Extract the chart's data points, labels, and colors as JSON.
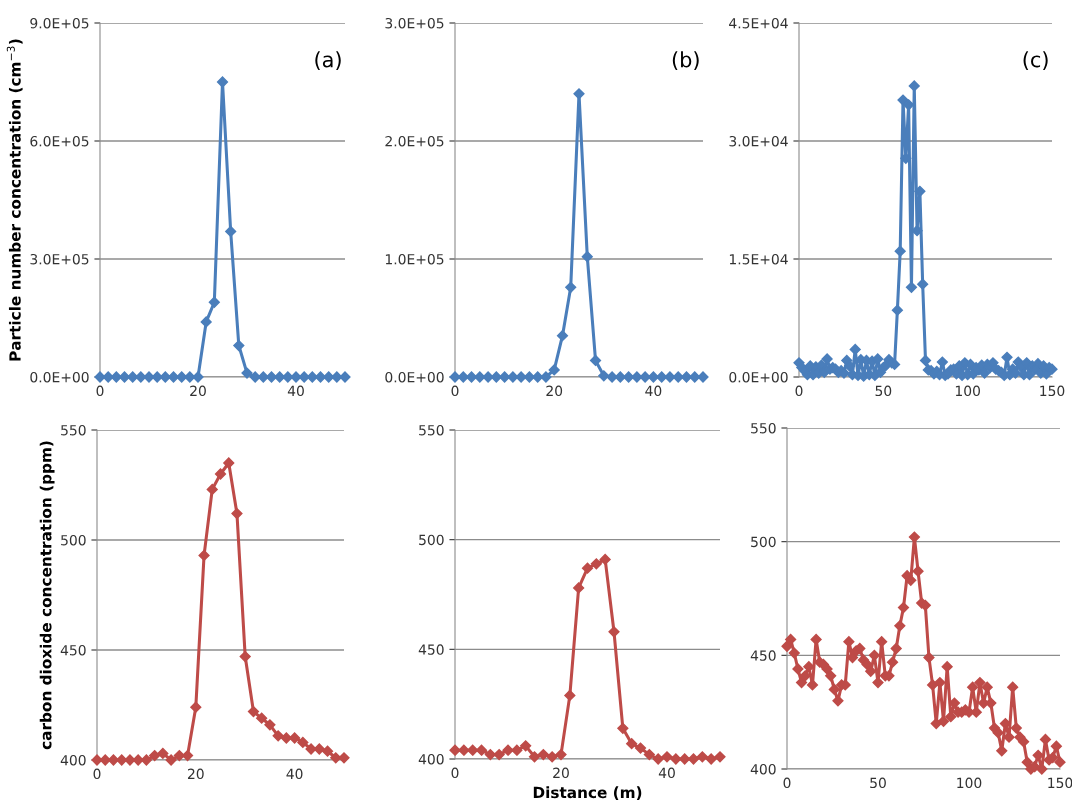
{
  "chart_data": [
    {
      "type": "line",
      "annotations": [
        "(a)"
      ],
      "ylabel": "Particle number concentration (cm$^{−3}$)",
      "marker": "diamond",
      "line_style": "solid",
      "grid": "y",
      "x": [
        0,
        1.67,
        3.33,
        5,
        6.67,
        8.33,
        10,
        11.67,
        13.33,
        15,
        16.67,
        18.33,
        20,
        21.67,
        23.33,
        25,
        26.67,
        28.33,
        30,
        31.67,
        33.33,
        35,
        36.67,
        38.33,
        40,
        41.67,
        43.33,
        45,
        46.67,
        48.33,
        50
      ],
      "series": [
        {
          "color": "#4a7ebb",
          "values": [
            0,
            0,
            0,
            0,
            0,
            0,
            0,
            0,
            0,
            0,
            0,
            0,
            0,
            140000,
            190000,
            750000,
            370000,
            80000,
            10000,
            0,
            0,
            0,
            0,
            0,
            0,
            0,
            0,
            0,
            0,
            0,
            0
          ]
        }
      ],
      "xlim": [
        0,
        50
      ],
      "xticks": [
        0,
        20,
        40
      ],
      "ylim": [
        0,
        900000
      ],
      "yticks": [
        {
          "value": 0,
          "label": "0.0E+00"
        },
        {
          "value": 300000,
          "label": "3.0E+05"
        },
        {
          "value": 600000,
          "label": "6.0E+05"
        },
        {
          "value": 900000,
          "label": "9.0E+05"
        }
      ]
    },
    {
      "type": "line",
      "annotations": [
        "(b)"
      ],
      "marker": "diamond",
      "line_style": "solid",
      "grid": "y",
      "x": [
        0,
        1.67,
        3.33,
        5,
        6.67,
        8.33,
        10,
        11.67,
        13.33,
        15,
        16.67,
        18.33,
        20,
        21.67,
        23.33,
        25,
        26.67,
        28.33,
        30,
        31.67,
        33.33,
        35,
        36.67,
        38.33,
        40,
        41.67,
        43.33,
        45,
        46.67,
        48.33,
        50
      ],
      "series": [
        {
          "color": "#4a7ebb",
          "values": [
            0,
            0,
            0,
            0,
            0,
            0,
            0,
            0,
            0,
            0,
            0,
            0,
            6000,
            35000,
            76000,
            240000,
            102000,
            14000,
            1000,
            0,
            0,
            0,
            0,
            0,
            0,
            0,
            0,
            0,
            0,
            0,
            0
          ]
        }
      ],
      "xlim": [
        0,
        50
      ],
      "xticks": [
        0,
        20,
        40
      ],
      "ylim": [
        0,
        300000
      ],
      "yticks": [
        {
          "value": 0,
          "label": "0.0E+00"
        },
        {
          "value": 100000,
          "label": "1.0E+05"
        },
        {
          "value": 200000,
          "label": "2.0E+05"
        },
        {
          "value": 300000,
          "label": "3.0E+05"
        }
      ]
    },
    {
      "type": "line",
      "annotations": [
        "(c)"
      ],
      "marker": "diamond",
      "line_style": "solid",
      "grid": "y",
      "x": [
        0,
        1.67,
        3.33,
        5,
        6.67,
        8.33,
        10,
        11.67,
        13.33,
        15,
        16.67,
        18.33,
        20,
        21.67,
        23.33,
        25,
        26.67,
        28.33,
        30,
        31.67,
        33.33,
        35,
        36.67,
        38.33,
        40,
        41.67,
        43.33,
        45,
        46.67,
        48.33,
        50,
        51.67,
        53.33,
        55,
        56.67,
        58.33,
        60,
        61.67,
        63.33,
        65,
        66.67,
        68.33,
        70,
        71.67,
        73.33,
        75,
        76.67,
        78.33,
        80,
        81.67,
        83.33,
        85,
        86.67,
        88.33,
        90,
        91.67,
        93.33,
        95,
        96.67,
        98.33,
        100,
        101.67,
        103.33,
        105,
        106.67,
        108.33,
        110,
        111.67,
        113.33,
        115,
        116.67,
        118.33,
        120,
        121.67,
        123.33,
        125,
        126.67,
        128.33,
        130,
        131.67,
        133.33,
        135,
        136.67,
        138.33,
        140,
        141.67,
        143.33,
        145,
        146.67,
        148.33,
        150
      ],
      "series": [
        {
          "color": "#4a7ebb",
          "values": [
            1800,
            1200,
            800,
            300,
            1400,
            300,
            1300,
            500,
            1500,
            600,
            2300,
            1000,
            1200,
            1000,
            600,
            800,
            500,
            2100,
            1400,
            300,
            3500,
            200,
            2200,
            100,
            2100,
            300,
            2000,
            200,
            2300,
            600,
            1200,
            1500,
            2200,
            1800,
            1600,
            8500,
            16000,
            35200,
            27800,
            34600,
            11400,
            37000,
            18600,
            23600,
            11800,
            2100,
            900,
            800,
            400,
            700,
            300,
            1900,
            200,
            400,
            900,
            1000,
            400,
            1400,
            200,
            1800,
            300,
            1600,
            400,
            1200,
            900,
            1500,
            500,
            1600,
            1200,
            1800,
            1000,
            800,
            600,
            200,
            2500,
            300,
            1000,
            500,
            1900,
            1300,
            300,
            1800,
            300,
            1400,
            1000,
            1700,
            500,
            1400,
            400,
            1200,
            1000
          ]
        }
      ],
      "xlim": [
        0,
        150
      ],
      "xticks": [
        0,
        50,
        100,
        150
      ],
      "ylim": [
        0,
        45000
      ],
      "yticks": [
        {
          "value": 0,
          "label": "0.0E+00"
        },
        {
          "value": 15000,
          "label": "1.5E+04"
        },
        {
          "value": 30000,
          "label": "3.0E+04"
        },
        {
          "value": 45000,
          "label": "4.5E+04"
        }
      ]
    },
    {
      "type": "line",
      "ylabel": "carbon dioxide concentration (ppm)",
      "marker": "diamond",
      "line_style": "solid",
      "grid": "y",
      "x": [
        0,
        1.67,
        3.33,
        5,
        6.67,
        8.33,
        10,
        11.67,
        13.33,
        15,
        16.67,
        18.33,
        20,
        21.67,
        23.33,
        25,
        26.67,
        28.33,
        30,
        31.67,
        33.33,
        35,
        36.67,
        38.33,
        40,
        41.67,
        43.33,
        45,
        46.67,
        48.33,
        50
      ],
      "series": [
        {
          "color": "#be4b48",
          "values": [
            400,
            400,
            400,
            400,
            400,
            400,
            400,
            402,
            403,
            400,
            402,
            402,
            424,
            493,
            523,
            530,
            535,
            512,
            447,
            422,
            419,
            416,
            411,
            410,
            410,
            408,
            405,
            405,
            404,
            401,
            401
          ]
        }
      ],
      "xlim": [
        0,
        50
      ],
      "xticks": [
        0,
        20,
        40
      ],
      "ylim": [
        400,
        550
      ],
      "yticks": [
        400,
        450,
        500,
        550
      ]
    },
    {
      "type": "line",
      "xlabel": "Distance (m)",
      "marker": "diamond",
      "line_style": "solid",
      "grid": "y",
      "x": [
        0,
        1.67,
        3.33,
        5,
        6.67,
        8.33,
        10,
        11.67,
        13.33,
        15,
        16.67,
        18.33,
        20,
        21.67,
        23.33,
        25,
        26.67,
        28.33,
        30,
        31.67,
        33.33,
        35,
        36.67,
        38.33,
        40,
        41.67,
        43.33,
        45,
        46.67,
        48.33,
        50
      ],
      "series": [
        {
          "color": "#be4b48",
          "values": [
            404,
            404,
            404,
            404,
            402,
            402,
            404,
            404,
            406,
            401,
            402,
            401,
            402,
            429,
            478,
            487,
            489,
            491,
            458,
            414,
            407,
            405,
            402,
            400,
            401,
            400,
            400,
            400,
            401,
            400,
            401
          ]
        }
      ],
      "xlim": [
        0,
        50
      ],
      "xticks": [
        0,
        20,
        40
      ],
      "ylim": [
        400,
        550
      ],
      "yticks": [
        400,
        450,
        500,
        550
      ]
    },
    {
      "type": "line",
      "marker": "diamond",
      "line_style": "solid",
      "grid": "y",
      "x": [
        0,
        2,
        4,
        6,
        8,
        10,
        12,
        14,
        16,
        18,
        20,
        22,
        24,
        26,
        28,
        30,
        32,
        34,
        36,
        38,
        40,
        42,
        44,
        46,
        48,
        50,
        52,
        54,
        56,
        58,
        60,
        62,
        64,
        66,
        68,
        70,
        72,
        74,
        76,
        78,
        80,
        82,
        84,
        86,
        88,
        90,
        92,
        94,
        96,
        98,
        100,
        102,
        104,
        106,
        108,
        110,
        112,
        114,
        116,
        118,
        120,
        122,
        124,
        126,
        128,
        130,
        132,
        134,
        136,
        138,
        140,
        142,
        144,
        146,
        148,
        150
      ],
      "series": [
        {
          "color": "#be4b48",
          "values": [
            454,
            457,
            451,
            444,
            438,
            441,
            445,
            437,
            457,
            447,
            446,
            444,
            441,
            435,
            430,
            437,
            437,
            456,
            449,
            452,
            453,
            448,
            446,
            443,
            450,
            438,
            456,
            441,
            441,
            447,
            453,
            463,
            471,
            485,
            483,
            502,
            487,
            473,
            472,
            449,
            437,
            420,
            438,
            421,
            445,
            423,
            429,
            425,
            425,
            426,
            425,
            436,
            425,
            438,
            429,
            436,
            429,
            418,
            416,
            408,
            420,
            414,
            436,
            418,
            414,
            412,
            403,
            400,
            401,
            406,
            400,
            413,
            404,
            405,
            410,
            403
          ]
        }
      ],
      "xlim": [
        0,
        150
      ],
      "xticks": [
        0,
        50,
        100,
        150
      ],
      "ylim": [
        400,
        550
      ],
      "yticks": [
        400,
        450,
        500,
        550
      ]
    }
  ]
}
